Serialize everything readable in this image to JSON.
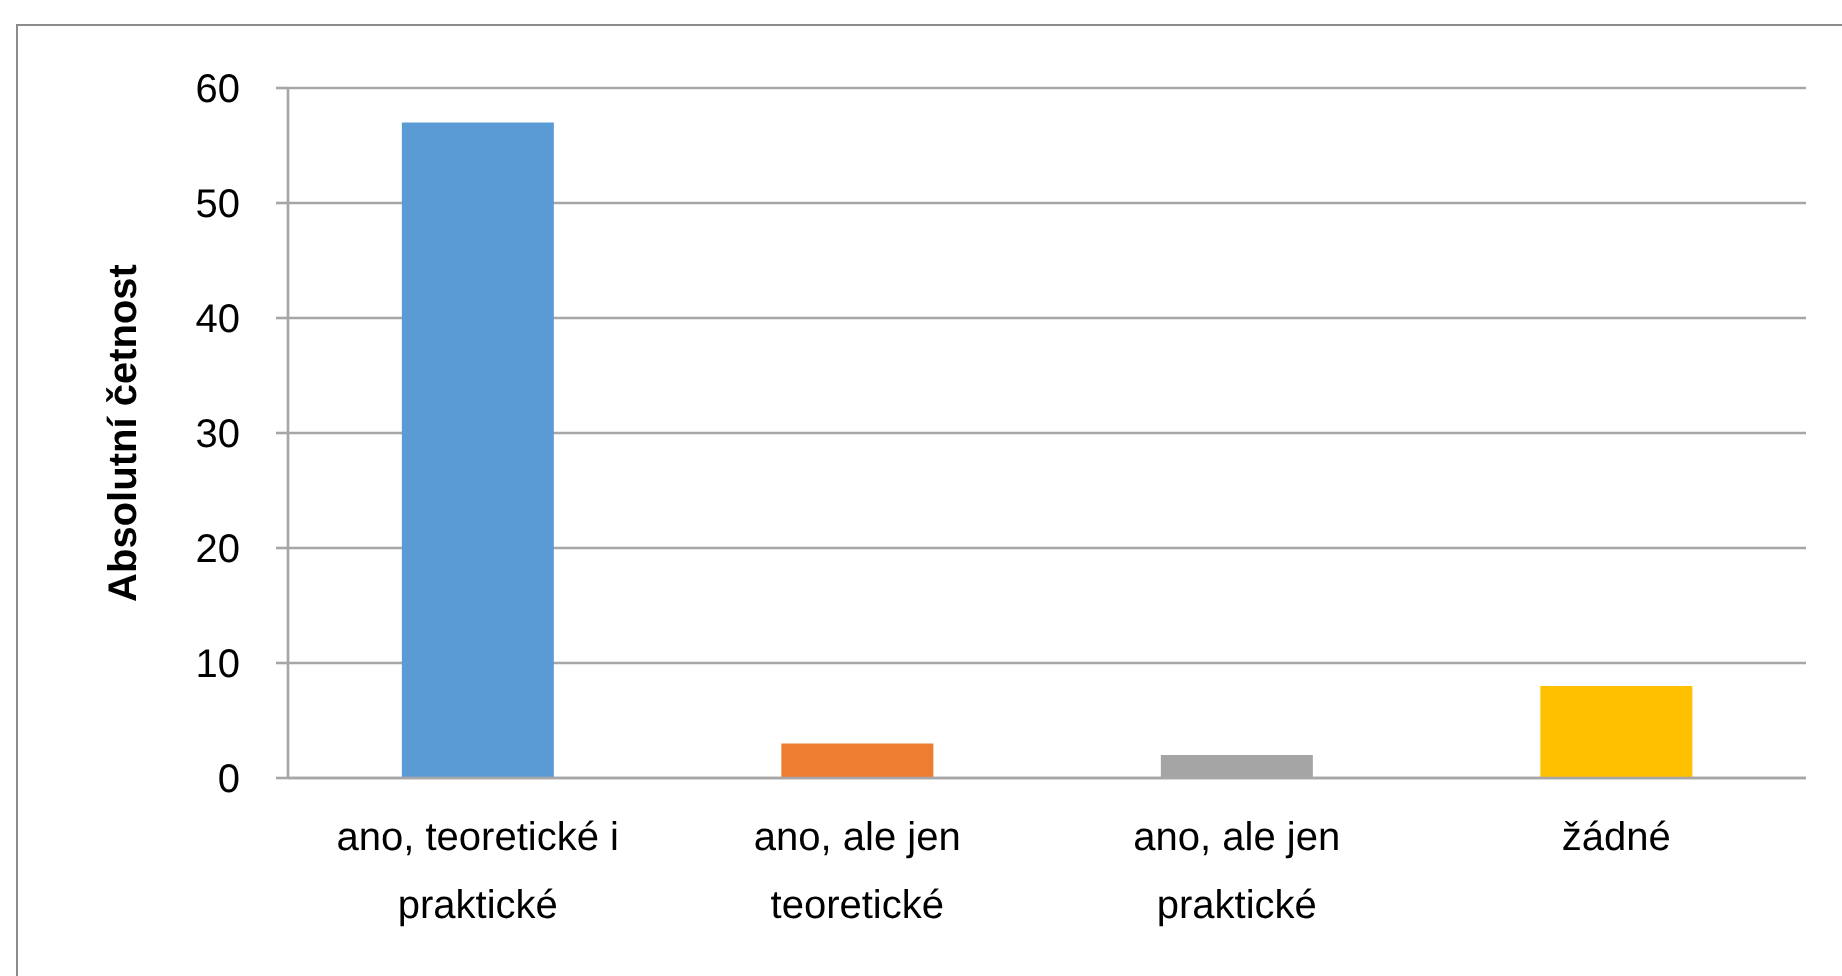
{
  "chart_data": {
    "type": "bar",
    "ylabel": "Absolutní četnost",
    "categories": [
      "ano, teoretické i praktické",
      "ano, ale jen teoretické",
      "ano, ale jen praktické",
      "žádné"
    ],
    "values": [
      57,
      3,
      2,
      8
    ],
    "colors": [
      "#5b9bd5",
      "#ed7d31",
      "#a5a5a5",
      "#ffc000"
    ],
    "ylim": [
      0,
      60
    ],
    "yticks": [
      0,
      10,
      20,
      30,
      40,
      50,
      60
    ],
    "grid": "y"
  }
}
